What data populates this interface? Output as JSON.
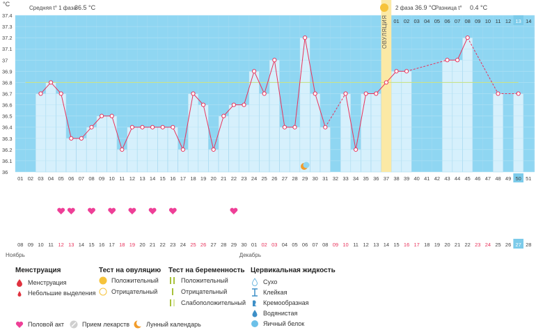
{
  "header": {
    "unit": "°C",
    "phase1_label": "Средняя t° 1 фаза",
    "phase1_value": "36.5 °C",
    "phase2_label": "2 фаза",
    "phase2_value": "36.9 °C",
    "diff_label": "Разница t°",
    "diff_value": "0.4 °C",
    "ovulation_label": "ОВУЛЯЦИЯ"
  },
  "chart_data": {
    "type": "line",
    "ylabel": "°C",
    "ylim": [
      36.0,
      37.4
    ],
    "yticks": [
      "36",
      "36.1",
      "36.2",
      "36.3",
      "36.4",
      "36.5",
      "36.6",
      "36.7",
      "36.8",
      "36.9",
      "37",
      "37.1",
      "37.2",
      "37.3",
      "37.4"
    ],
    "x": [
      "01",
      "02",
      "03",
      "04",
      "05",
      "06",
      "07",
      "08",
      "09",
      "10",
      "11",
      "12",
      "13",
      "14",
      "15",
      "16",
      "17",
      "18",
      "19",
      "20",
      "21",
      "22",
      "23",
      "24",
      "25",
      "26",
      "27",
      "28",
      "29",
      "30",
      "31",
      "32",
      "33",
      "34",
      "35",
      "36",
      "37",
      "38",
      "39",
      "40",
      "41",
      "42",
      "43",
      "44",
      "45",
      "46",
      "47",
      "48",
      "49",
      "50",
      "51"
    ],
    "values": [
      null,
      null,
      36.7,
      36.8,
      36.7,
      36.3,
      36.3,
      36.4,
      36.5,
      36.5,
      36.2,
      36.4,
      36.4,
      36.4,
      36.4,
      36.4,
      36.2,
      36.7,
      36.6,
      36.2,
      36.5,
      36.6,
      36.6,
      36.9,
      36.7,
      37.0,
      36.4,
      36.4,
      37.2,
      36.7,
      36.4,
      null,
      36.7,
      36.2,
      36.7,
      36.7,
      36.8,
      36.9,
      36.9,
      null,
      null,
      null,
      37.0,
      37.0,
      37.2,
      null,
      null,
      36.7,
      null,
      36.7,
      null
    ],
    "coverline": 36.8,
    "ovulation_day": "37",
    "post_ovulation_cycle_days": [
      "01",
      "02",
      "03",
      "04",
      "05",
      "06",
      "07",
      "08",
      "09",
      "10",
      "11",
      "12",
      "13",
      "14"
    ],
    "highlighted_post_day": "13",
    "highlighted_cycle_day": "50",
    "moon_day": "29",
    "intercourse_days": [
      "05",
      "06",
      "08",
      "10",
      "12",
      "14",
      "16",
      "22"
    ],
    "calendar_dates": [
      "08",
      "09",
      "10",
      "11",
      "12",
      "13",
      "14",
      "15",
      "16",
      "17",
      "18",
      "19",
      "20",
      "21",
      "22",
      "23",
      "24",
      "25",
      "26",
      "27",
      "28",
      "29",
      "30",
      "01",
      "02",
      "03",
      "04",
      "05",
      "06",
      "07",
      "08",
      "09",
      "10",
      "11",
      "12",
      "13",
      "14",
      "15",
      "16",
      "17",
      "18",
      "19",
      "20",
      "21",
      "22",
      "23",
      "24",
      "25",
      "26",
      "27",
      "28"
    ],
    "weekend_dates_index": [
      4,
      5,
      10,
      11,
      17,
      18,
      24,
      25,
      31,
      32,
      38,
      39,
      45,
      46
    ],
    "highlighted_date_index": 49,
    "month_labels": [
      {
        "label": "Ноябрь",
        "index": 0
      },
      {
        "label": "Декабрь",
        "index": 23
      }
    ]
  },
  "colors": {
    "chart_bg": "#8fd6f2",
    "bar_fill": "#d6f0fc",
    "bar_stroke": "#9fd3ea",
    "line": "#e8325b",
    "coverline": "#c9e28a",
    "ovulation_band": "#fbe9a5",
    "weekend_text": "#e8325b",
    "highlight_box": "#7ccbea"
  },
  "legend": {
    "menstruation": {
      "title": "Менструация",
      "items": [
        "Менструация",
        "Небольшие выделения"
      ]
    },
    "ovulation_test": {
      "title": "Тест на овуляцию",
      "items": [
        "Положительный",
        "Отрицательный"
      ]
    },
    "pregnancy_test": {
      "title": "Тест на беременность",
      "items": [
        "Положительный",
        "Отрицательный",
        "Слабоположительный"
      ]
    },
    "cervical": {
      "title": "Цервикальная жидкость",
      "items": [
        "Сухо",
        "Клейкая",
        "Кремообразная",
        "Водянистая",
        "Яичный белок"
      ]
    },
    "bottom": [
      "Половой акт",
      "Прием лекарств",
      "Лунный календарь"
    ]
  }
}
